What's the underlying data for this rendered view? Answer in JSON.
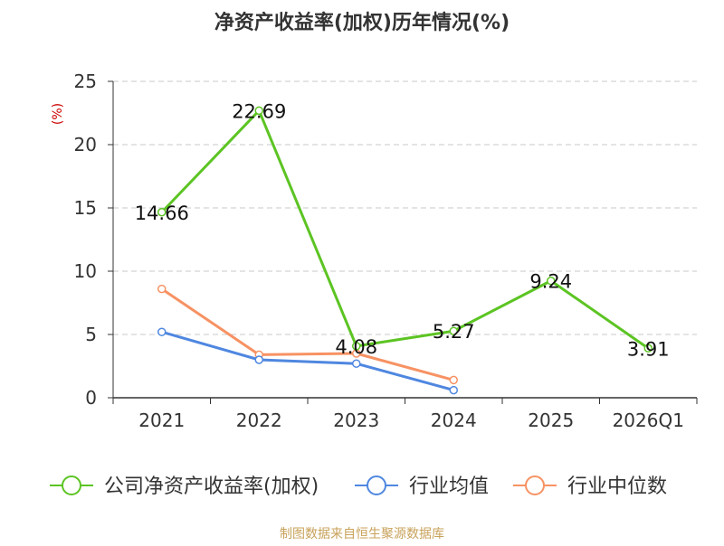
{
  "chart_data": {
    "type": "line",
    "title": "净资产收益率(加权)历年情况(%)",
    "ylabel": "(%)",
    "xlabel": "",
    "categories": [
      "2021",
      "2022",
      "2023",
      "2024",
      "2025",
      "2026Q1"
    ],
    "ylim": [
      0,
      25
    ],
    "yticks": [
      "0",
      "5",
      "10",
      "15",
      "20",
      "25"
    ],
    "grid": true,
    "legend_position": "bottom",
    "series": [
      {
        "name": "公司净资产收益率(加权)",
        "color": "#5cc423",
        "values": [
          14.66,
          22.69,
          4.08,
          5.27,
          9.24,
          3.91
        ],
        "labels": [
          "14.66",
          "22.69",
          "4.08",
          "5.27",
          "9.24",
          "3.91"
        ]
      },
      {
        "name": "行业均值",
        "color": "#4f87e0",
        "values": [
          5.2,
          3.0,
          2.7,
          0.6,
          null,
          null
        ]
      },
      {
        "name": "行业中位数",
        "color": "#f79263",
        "values": [
          8.6,
          3.4,
          3.5,
          1.4,
          null,
          null
        ]
      }
    ],
    "source_note": "制图数据来自恒生聚源数据库"
  },
  "colors": {
    "title": "#333333",
    "axis_label": "#cc0000",
    "tick": "#333333",
    "grid": "#c8c8c8",
    "axis_line": "#333333",
    "source_note": "#c8a25a"
  }
}
